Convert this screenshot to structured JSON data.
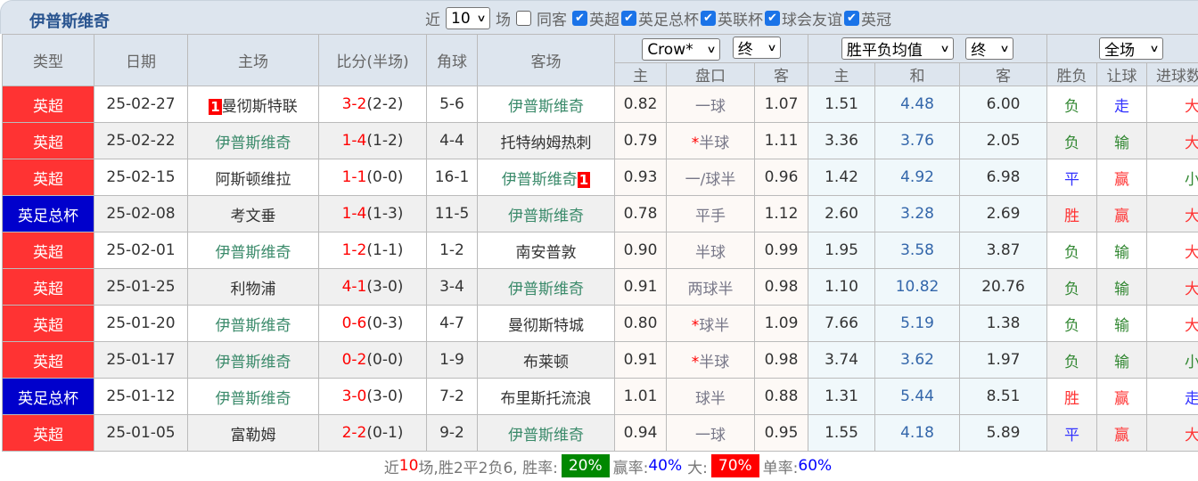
{
  "title": "伊普斯维奇",
  "filters": {
    "near": "近",
    "count": "10",
    "games": "场",
    "same_venue": "同客",
    "leagues": [
      {
        "label": "英超",
        "checked": true
      },
      {
        "label": "英足总杯",
        "checked": true
      },
      {
        "label": "英联杯",
        "checked": true
      },
      {
        "label": "球会友谊",
        "checked": true
      },
      {
        "label": "英冠",
        "checked": true
      }
    ]
  },
  "headers": {
    "type": "类型",
    "date": "日期",
    "home": "主场",
    "score": "比分(半场)",
    "corner": "角球",
    "away": "客场",
    "ah_company": "Crow*",
    "ah_time": "终",
    "eu_type": "胜平负均值",
    "eu_time": "终",
    "period": "全场",
    "ah_home": "主",
    "ah_line": "盘口",
    "ah_away": "客",
    "eu_home": "主",
    "eu_draw": "和",
    "eu_away": "客",
    "res_wl": "胜负",
    "res_ah": "让球",
    "res_ou": "进球数"
  },
  "colors": {
    "league": "#ff3333",
    "cup": "#0000cc",
    "win": "#ff3333",
    "draw": "#3333ff",
    "loss": "#338833"
  },
  "rows": [
    {
      "type": "英超",
      "cup": false,
      "date": "25-02-27",
      "home": "曼彻斯特联",
      "home_red": "1",
      "score": "3-2",
      "ht": "(2-2)",
      "corner": "5-6",
      "away": "伊普斯维奇",
      "away_red": "",
      "oh": "0.82",
      "line": "一球",
      "star": false,
      "oa": "1.07",
      "e1": "1.51",
      "ex": "4.48",
      "e2": "6.00",
      "wl": "负",
      "ah": "走",
      "ou": "大"
    },
    {
      "type": "英超",
      "cup": false,
      "date": "25-02-22",
      "home": "伊普斯维奇",
      "home_red": "",
      "score": "1-4",
      "ht": "(1-2)",
      "corner": "4-4",
      "away": "托特纳姆热刺",
      "away_red": "",
      "oh": "0.79",
      "line": "半球",
      "star": true,
      "oa": "1.11",
      "e1": "3.36",
      "ex": "3.76",
      "e2": "2.05",
      "wl": "负",
      "ah": "输",
      "ou": "大"
    },
    {
      "type": "英超",
      "cup": false,
      "date": "25-02-15",
      "home": "阿斯顿维拉",
      "home_red": "",
      "score": "1-1",
      "ht": "(0-0)",
      "corner": "16-1",
      "away": "伊普斯维奇",
      "away_red": "1",
      "oh": "0.93",
      "line": "一/球半",
      "star": false,
      "oa": "0.96",
      "e1": "1.42",
      "ex": "4.92",
      "e2": "6.98",
      "wl": "平",
      "ah": "赢",
      "ou": "小"
    },
    {
      "type": "英足总杯",
      "cup": true,
      "date": "25-02-08",
      "home": "考文垂",
      "home_red": "",
      "score": "1-4",
      "ht": "(1-3)",
      "corner": "11-5",
      "away": "伊普斯维奇",
      "away_red": "",
      "oh": "0.78",
      "line": "平手",
      "star": false,
      "oa": "1.12",
      "e1": "2.60",
      "ex": "3.28",
      "e2": "2.69",
      "wl": "胜",
      "ah": "赢",
      "ou": "大"
    },
    {
      "type": "英超",
      "cup": false,
      "date": "25-02-01",
      "home": "伊普斯维奇",
      "home_red": "",
      "score": "1-2",
      "ht": "(1-1)",
      "corner": "1-2",
      "away": "南安普敦",
      "away_red": "",
      "oh": "0.90",
      "line": "半球",
      "star": false,
      "oa": "0.99",
      "e1": "1.95",
      "ex": "3.58",
      "e2": "3.87",
      "wl": "负",
      "ah": "输",
      "ou": "大"
    },
    {
      "type": "英超",
      "cup": false,
      "date": "25-01-25",
      "home": "利物浦",
      "home_red": "",
      "score": "4-1",
      "ht": "(3-0)",
      "corner": "3-4",
      "away": "伊普斯维奇",
      "away_red": "",
      "oh": "0.91",
      "line": "两球半",
      "star": false,
      "oa": "0.98",
      "e1": "1.10",
      "ex": "10.82",
      "e2": "20.76",
      "wl": "负",
      "ah": "输",
      "ou": "大"
    },
    {
      "type": "英超",
      "cup": false,
      "date": "25-01-20",
      "home": "伊普斯维奇",
      "home_red": "",
      "score": "0-6",
      "ht": "(0-3)",
      "corner": "4-7",
      "away": "曼彻斯特城",
      "away_red": "",
      "oh": "0.80",
      "line": "球半",
      "star": true,
      "oa": "1.09",
      "e1": "7.66",
      "ex": "5.19",
      "e2": "1.38",
      "wl": "负",
      "ah": "输",
      "ou": "大"
    },
    {
      "type": "英超",
      "cup": false,
      "date": "25-01-17",
      "home": "伊普斯维奇",
      "home_red": "",
      "score": "0-2",
      "ht": "(0-0)",
      "corner": "1-9",
      "away": "布莱顿",
      "away_red": "",
      "oh": "0.91",
      "line": "半球",
      "star": true,
      "oa": "0.98",
      "e1": "3.74",
      "ex": "3.62",
      "e2": "1.97",
      "wl": "负",
      "ah": "输",
      "ou": "小"
    },
    {
      "type": "英足总杯",
      "cup": true,
      "date": "25-01-12",
      "home": "伊普斯维奇",
      "home_red": "",
      "score": "3-0",
      "ht": "(3-0)",
      "corner": "7-2",
      "away": "布里斯托流浪",
      "away_red": "",
      "oh": "1.01",
      "line": "球半",
      "star": false,
      "oa": "0.88",
      "e1": "1.31",
      "ex": "5.44",
      "e2": "8.51",
      "wl": "胜",
      "ah": "赢",
      "ou": "走"
    },
    {
      "type": "英超",
      "cup": false,
      "date": "25-01-05",
      "home": "富勒姆",
      "home_red": "",
      "score": "2-2",
      "ht": "(0-1)",
      "corner": "9-2",
      "away": "伊普斯维奇",
      "away_red": "",
      "oh": "0.94",
      "line": "一球",
      "star": false,
      "oa": "0.95",
      "e1": "1.55",
      "ex": "4.18",
      "e2": "5.89",
      "wl": "平",
      "ah": "赢",
      "ou": "大"
    }
  ],
  "footer": {
    "p1": "近",
    "n": "10",
    "p2": "场,胜2平2负6, 胜率:",
    "win_rate": "20%",
    "p3": "赢率:",
    "ah_rate": "40%",
    "p4": "大:",
    "over_rate": "70%",
    "p5": "单率:",
    "odd_rate": "60%"
  }
}
